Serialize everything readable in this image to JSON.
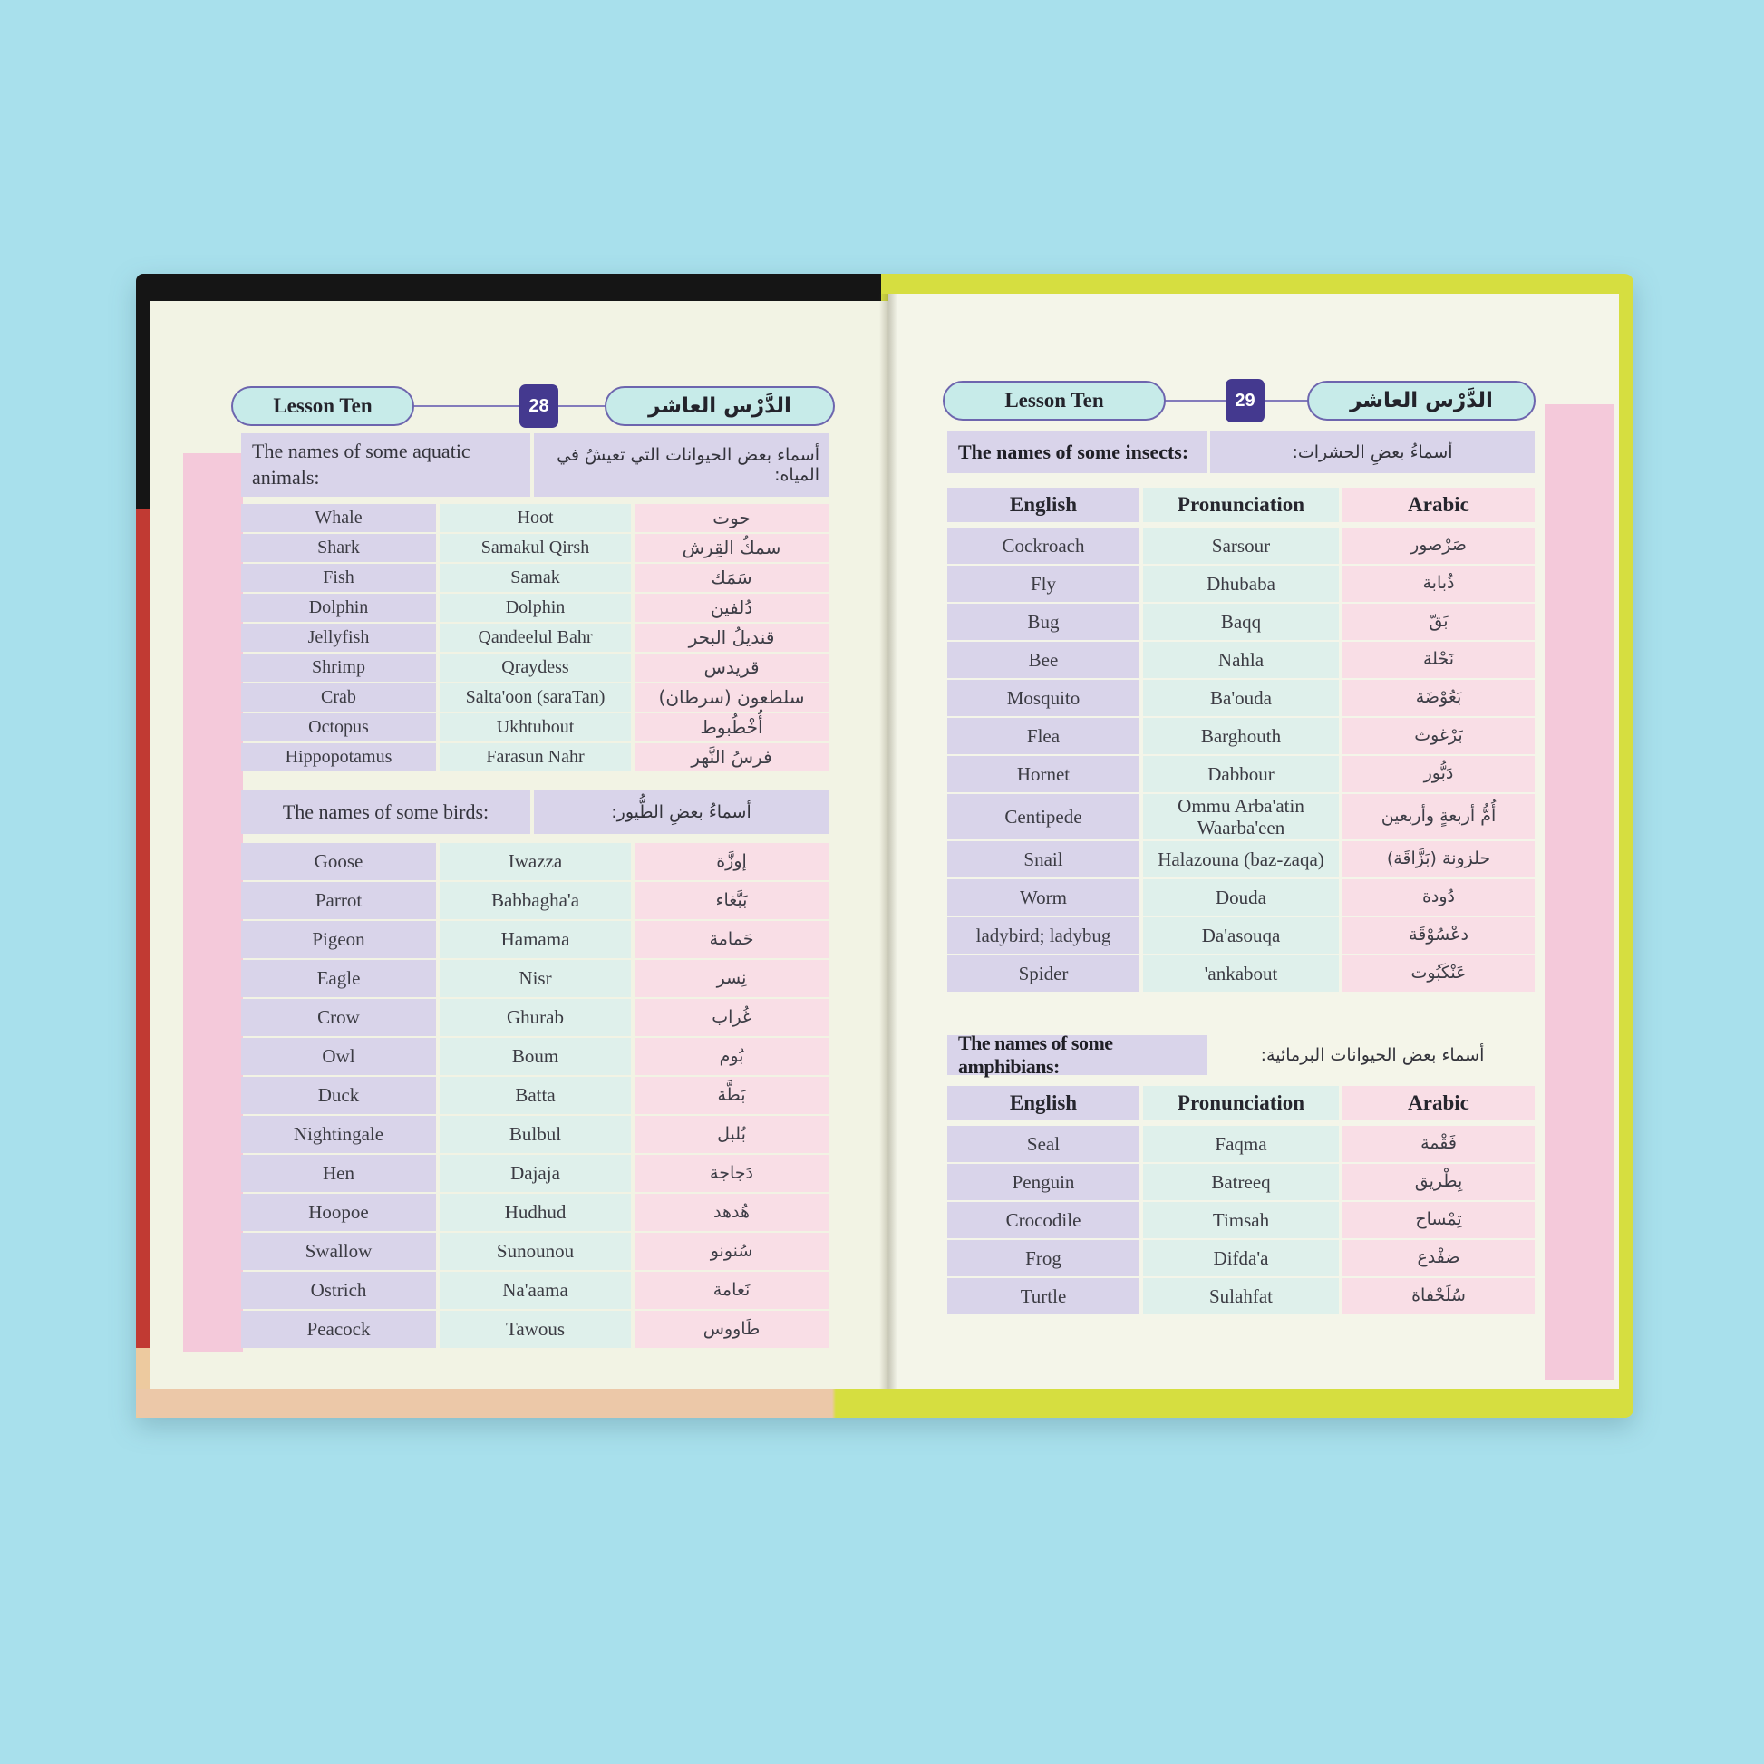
{
  "colors": {
    "background": "#a8e0ec",
    "page_cream": "#f2f3e4",
    "english_column": "#d9d4ea",
    "pronunciation_column": "#dff0eb",
    "arabic_column": "#f9dee6",
    "margin_band_pink": "#f4c9da",
    "pill_fill": "#c7ebe9",
    "pill_border": "#6d65ae",
    "page_badge": "#44398f",
    "cover_yellow": "#d6de40",
    "cover_red": "#c13a33",
    "cover_black": "#151515",
    "cover_peach": "#ecc8a8"
  },
  "left_page": {
    "header": {
      "lesson_en": "Lesson Ten",
      "page_number": "28",
      "lesson_ar": "الدَّرْس العاشر"
    },
    "sections": [
      {
        "title_en": "The names of some aquatic animals:",
        "title_ar": "أسماء بعض الحيوانات التي تعيشُ في المياه:",
        "rows": [
          [
            "Whale",
            "Hoot",
            "حوت"
          ],
          [
            "Shark",
            "Samakul Qirsh",
            "سمكُ القِرش"
          ],
          [
            "Fish",
            "Samak",
            "سَمَك"
          ],
          [
            "Dolphin",
            "Dolphin",
            "دُلفين"
          ],
          [
            "Jellyfish",
            "Qandeelul Bahr",
            "قنديلُ البحر"
          ],
          [
            "Shrimp",
            "Qraydess",
            "قريدس"
          ],
          [
            "Crab",
            "Salta'oon (saraTan)",
            "سلطعون (سرطان)"
          ],
          [
            "Octopus",
            "Ukhtubout",
            "أُخْطُبوط"
          ],
          [
            "Hippopotamus",
            "Farasun Nahr",
            "فرسُ النَّهر"
          ]
        ]
      },
      {
        "title_en": "The names of some birds:",
        "title_ar": "أسماءُ بعضِ الطُّيور:",
        "rows": [
          [
            "Goose",
            "Iwazza",
            "إوزَّة"
          ],
          [
            "Parrot",
            "Babbagha'a",
            "بَبَّغاء"
          ],
          [
            "Pigeon",
            "Hamama",
            "حَمامة"
          ],
          [
            "Eagle",
            "Nisr",
            "نِسر"
          ],
          [
            "Crow",
            "Ghurab",
            "غُراب"
          ],
          [
            "Owl",
            "Boum",
            "بُوم"
          ],
          [
            "Duck",
            "Batta",
            "بَطَّة"
          ],
          [
            "Nightingale",
            "Bulbul",
            "بُلبل"
          ],
          [
            "Hen",
            "Dajaja",
            "دَجاجة"
          ],
          [
            "Hoopoe",
            "Hudhud",
            "هُدهد"
          ],
          [
            "Swallow",
            "Sunounou",
            "سُنونو"
          ],
          [
            "Ostrich",
            "Na'aama",
            "نَعامة"
          ],
          [
            "Peacock",
            "Tawous",
            "طَاووس"
          ]
        ]
      }
    ]
  },
  "right_page": {
    "header": {
      "lesson_en": "Lesson Ten",
      "page_number": "29",
      "lesson_ar": "الدَّرْس العاشر"
    },
    "sections": [
      {
        "title_en": "The names of some insects:",
        "title_ar": "أسماءُ بعضِ الحشرات:",
        "columns": [
          "English",
          "Pronunciation",
          "Arabic"
        ],
        "rows": [
          [
            "Cockroach",
            "Sarsour",
            "صَرْصور"
          ],
          [
            "Fly",
            "Dhubaba",
            "ذُبابة"
          ],
          [
            "Bug",
            "Baqq",
            "بَقّ"
          ],
          [
            "Bee",
            "Nahla",
            "نَحْلة"
          ],
          [
            "Mosquito",
            "Ba'ouda",
            "بَعُوْضَة"
          ],
          [
            "Flea",
            "Barghouth",
            "بَرْغوث"
          ],
          [
            "Hornet",
            "Dabbour",
            "دَبُّور"
          ],
          [
            "Centipede",
            "Ommu Arba'atin Waarba'een",
            "أُمُّ أربعةٍ وأربعين"
          ],
          [
            "Snail",
            "Halazouna (baz-zaqa)",
            "حلزونة (بَزَّاقَة)"
          ],
          [
            "Worm",
            "Douda",
            "دُودة"
          ],
          [
            "ladybird; ladybug",
            "Da'asouqa",
            "دعْسُوْقَة"
          ],
          [
            "Spider",
            "'ankabout",
            "عَنْكَبُوت"
          ]
        ]
      },
      {
        "title_en": "The names of some amphibians:",
        "title_ar": "أسماء بعض الحيوانات البرمائية:",
        "columns": [
          "English",
          "Pronunciation",
          "Arabic"
        ],
        "rows": [
          [
            "Seal",
            "Faqma",
            "فَقْمة"
          ],
          [
            "Penguin",
            "Batreeq",
            "بِطْريق"
          ],
          [
            "Crocodile",
            "Timsah",
            "تِمْساح"
          ],
          [
            "Frog",
            "Difda'a",
            "ضفْدع"
          ],
          [
            "Turtle",
            "Sulahfat",
            "سُلَحْفاة"
          ]
        ]
      }
    ]
  }
}
